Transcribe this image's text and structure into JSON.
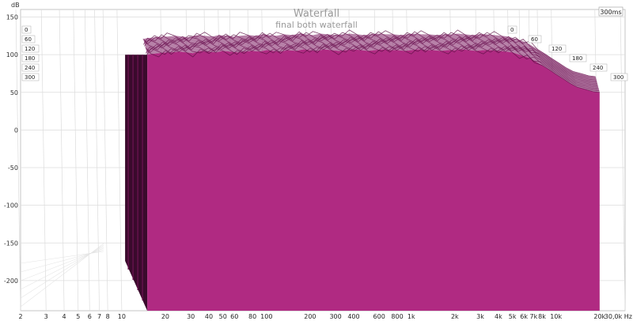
{
  "chart_data": {
    "type": "area",
    "title": "Waterfall",
    "subtitle": "final both waterfall",
    "ylabel": "dB",
    "xunit": "Hz",
    "ylim": [
      -240,
      160
    ],
    "y_ticks": [
      150,
      100,
      50,
      0,
      -50,
      -100,
      -150,
      -200
    ],
    "x_scale": "log",
    "xlim": [
      2,
      30000
    ],
    "x_ticks": [
      {
        "v": 2,
        "label": "2"
      },
      {
        "v": 3,
        "label": "3"
      },
      {
        "v": 4,
        "label": "4"
      },
      {
        "v": 5,
        "label": "5"
      },
      {
        "v": 6,
        "label": "6"
      },
      {
        "v": 7,
        "label": "7"
      },
      {
        "v": 8,
        "label": "8"
      },
      {
        "v": 10,
        "label": "10"
      },
      {
        "v": 20,
        "label": "20"
      },
      {
        "v": 30,
        "label": "30"
      },
      {
        "v": 40,
        "label": "40"
      },
      {
        "v": 50,
        "label": "50"
      },
      {
        "v": 60,
        "label": "60"
      },
      {
        "v": 80,
        "label": "80"
      },
      {
        "v": 100,
        "label": "100"
      },
      {
        "v": 200,
        "label": "200"
      },
      {
        "v": 300,
        "label": "300"
      },
      {
        "v": 400,
        "label": "400"
      },
      {
        "v": 600,
        "label": "600"
      },
      {
        "v": 800,
        "label": "800"
      },
      {
        "v": 1000,
        "label": "1k"
      },
      {
        "v": 2000,
        "label": "2k"
      },
      {
        "v": 3000,
        "label": "3k"
      },
      {
        "v": 4000,
        "label": "4k"
      },
      {
        "v": 5000,
        "label": "5k"
      },
      {
        "v": 6000,
        "label": "6k"
      },
      {
        "v": 7000,
        "label": "7k"
      },
      {
        "v": 8000,
        "label": "8k"
      },
      {
        "v": 10000,
        "label": "10k"
      },
      {
        "v": 20000,
        "label": "20k"
      },
      {
        "v": 30000,
        "label": "30,0k Hz"
      }
    ],
    "time_unit": "ms",
    "time_slices": [
      "0",
      "60",
      "120",
      "180",
      "240",
      "300"
    ],
    "time_max_label": "300ms",
    "fill_color": "#b02a82",
    "ridge_color": "#5a0f43",
    "grid": true,
    "series": [
      {
        "values_x": [
          15,
          16,
          18,
          20,
          22,
          25,
          28,
          31,
          35,
          40,
          45,
          50,
          56,
          63,
          70,
          80,
          90,
          100,
          112,
          125,
          140,
          160,
          180,
          200,
          224,
          250,
          280,
          315,
          355,
          400,
          450,
          500,
          560,
          630,
          710,
          800,
          900,
          1000,
          1120,
          1250,
          1400,
          1600,
          1800,
          2000,
          2240,
          2500,
          2800,
          3150,
          3550,
          4000,
          4500,
          5000,
          5600,
          6300,
          7100,
          8000,
          9000,
          10000,
          11200,
          12500,
          14000,
          16000,
          18000,
          20000
        ],
        "values_y": [
          100,
          101,
          102,
          103,
          103,
          104,
          103,
          102,
          105,
          104,
          103,
          105,
          104,
          103,
          104,
          105,
          104,
          106,
          105,
          104,
          106,
          105,
          107,
          106,
          105,
          107,
          106,
          105,
          106,
          107,
          106,
          105,
          106,
          107,
          106,
          106,
          105,
          106,
          107,
          106,
          106,
          105,
          106,
          106,
          107,
          106,
          105,
          106,
          106,
          105,
          104,
          103,
          100,
          97,
          92,
          86,
          80,
          74,
          68,
          62,
          57,
          54,
          51,
          50
        ]
      }
    ]
  }
}
